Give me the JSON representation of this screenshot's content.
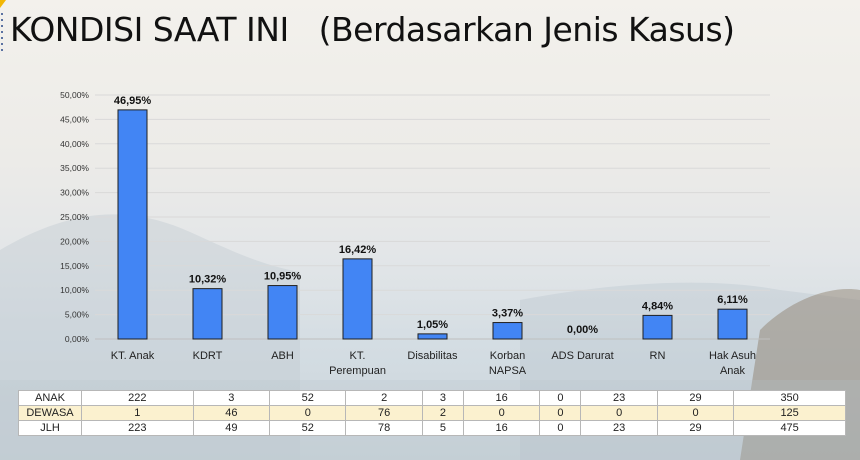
{
  "title": "KONDISI SAAT INI   (Berdasarkan Jenis Kasus)",
  "colors": {
    "bar": "#4285f4",
    "bar_edge": "#1f1f1f",
    "grid": "#d9d9d9",
    "accent": "#f2b705"
  },
  "chart_data": {
    "type": "bar",
    "categories": [
      "KT. Anak",
      "KDRT",
      "ABH",
      "KT. Perempuan",
      "Disabilitas",
      "Korban NAPSA",
      "ADS Darurat",
      "RN",
      "Hak Asuh Anak"
    ],
    "category_lines": [
      [
        "KT. Anak"
      ],
      [
        "KDRT"
      ],
      [
        "ABH"
      ],
      [
        "KT.",
        "Perempuan"
      ],
      [
        "Disabilitas"
      ],
      [
        "Korban",
        "NAPSA"
      ],
      [
        "ADS Darurat"
      ],
      [
        "RN"
      ],
      [
        "Hak Asuh",
        "Anak"
      ]
    ],
    "values": [
      46.95,
      10.32,
      10.95,
      16.42,
      1.05,
      3.37,
      0.0,
      4.84,
      6.11
    ],
    "data_labels": [
      "46,95%",
      "10,32%",
      "10,95%",
      "16,42%",
      "1,05%",
      "3,37%",
      "0,00%",
      "4,84%",
      "6,11%"
    ],
    "ylim": [
      0,
      50
    ],
    "yticks": [
      0,
      5,
      10,
      15,
      20,
      25,
      30,
      35,
      40,
      45,
      50
    ],
    "ytick_labels": [
      "0,00%",
      "5,00%",
      "10,00%",
      "15,00%",
      "20,00%",
      "25,00%",
      "30,00%",
      "35,00%",
      "40,00%",
      "45,00%",
      "50,00%"
    ],
    "grid": true,
    "legend": "none"
  },
  "table": {
    "rows": [
      {
        "label": "ANAK",
        "values": [
          "222",
          "3",
          "52",
          "2",
          "3",
          "16",
          "0",
          "23",
          "29",
          "350"
        ]
      },
      {
        "label": "DEWASA",
        "values": [
          "1",
          "46",
          "0",
          "76",
          "2",
          "0",
          "0",
          "0",
          "0",
          "125"
        ]
      },
      {
        "label": "JLH",
        "values": [
          "223",
          "49",
          "52",
          "78",
          "5",
          "16",
          "0",
          "23",
          "29",
          "475"
        ]
      }
    ]
  }
}
